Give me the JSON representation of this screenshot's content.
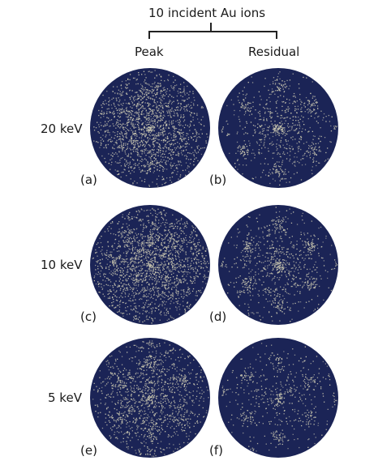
{
  "header": {
    "title": "10 incident Au ions",
    "col_peak": "Peak",
    "col_residual": "Residual"
  },
  "rows": [
    {
      "energy": "20 keV",
      "peak_label": "(a)",
      "residual_label": "(b)"
    },
    {
      "energy": "10 keV",
      "peak_label": "(c)",
      "residual_label": "(d)"
    },
    {
      "energy": "5 keV",
      "peak_label": "(e)",
      "residual_label": "(f)"
    }
  ],
  "colors": {
    "disk_background": "#1b2456",
    "dot_color": "#c9c6b0",
    "text": "#1a1a1a"
  }
}
